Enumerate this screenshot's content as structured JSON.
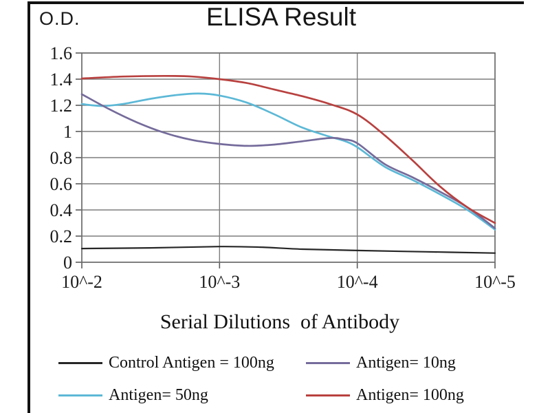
{
  "chart_data": {
    "type": "line",
    "title": "ELISA Result",
    "ylabel": "O.D.",
    "xlabel": "Serial Dilutions  of Antibody",
    "grid": true,
    "legend_position": "bottom",
    "x_axis": {
      "scale": "log-dilution",
      "min_exp": -2,
      "max_exp": -5,
      "ticks": [
        {
          "label": "10^-2",
          "exp": -2
        },
        {
          "label": "10^-3",
          "exp": -3
        },
        {
          "label": "10^-4",
          "exp": -4
        },
        {
          "label": "10^-5",
          "exp": -5
        }
      ]
    },
    "y_axis": {
      "min": 0,
      "max": 1.6,
      "ticks": [
        {
          "label": "0",
          "value": 0
        },
        {
          "label": "0.2",
          "value": 0.2
        },
        {
          "label": "0.4",
          "value": 0.4
        },
        {
          "label": "0.6",
          "value": 0.6
        },
        {
          "label": "0.8",
          "value": 0.8
        },
        {
          "label": "1",
          "value": 1.0
        },
        {
          "label": "1.2",
          "value": 1.2
        },
        {
          "label": "1.4",
          "value": 1.4
        },
        {
          "label": "1.6",
          "value": 1.6
        }
      ]
    },
    "series": [
      {
        "name": "Control Antigen = 100ng",
        "color": "#262626",
        "points": [
          [
            -2,
            0.105
          ],
          [
            -2.5,
            0.11
          ],
          [
            -3,
            0.12
          ],
          [
            -3.3,
            0.115
          ],
          [
            -3.6,
            0.1
          ],
          [
            -4,
            0.09
          ],
          [
            -4.5,
            0.08
          ],
          [
            -5,
            0.07
          ]
        ]
      },
      {
        "name": "Antigen= 10ng",
        "color": "#756b9b",
        "points": [
          [
            -2,
            1.285
          ],
          [
            -2.2,
            1.17
          ],
          [
            -2.4,
            1.07
          ],
          [
            -2.6,
            0.99
          ],
          [
            -2.8,
            0.935
          ],
          [
            -3,
            0.905
          ],
          [
            -3.2,
            0.89
          ],
          [
            -3.4,
            0.9
          ],
          [
            -3.6,
            0.925
          ],
          [
            -3.8,
            0.95
          ],
          [
            -3.9,
            0.94
          ],
          [
            -4,
            0.91
          ],
          [
            -4.2,
            0.75
          ],
          [
            -4.4,
            0.65
          ],
          [
            -4.6,
            0.54
          ],
          [
            -4.8,
            0.42
          ],
          [
            -5,
            0.26
          ]
        ]
      },
      {
        "name": "Antigen= 50ng",
        "color": "#5cb8d6",
        "points": [
          [
            -2,
            1.21
          ],
          [
            -2.15,
            1.195
          ],
          [
            -2.3,
            1.21
          ],
          [
            -2.5,
            1.25
          ],
          [
            -2.7,
            1.28
          ],
          [
            -2.85,
            1.29
          ],
          [
            -3,
            1.275
          ],
          [
            -3.2,
            1.22
          ],
          [
            -3.4,
            1.13
          ],
          [
            -3.6,
            1.03
          ],
          [
            -3.8,
            0.96
          ],
          [
            -3.9,
            0.93
          ],
          [
            -4,
            0.88
          ],
          [
            -4.2,
            0.73
          ],
          [
            -4.4,
            0.63
          ],
          [
            -4.6,
            0.52
          ],
          [
            -4.8,
            0.4
          ],
          [
            -5,
            0.25
          ]
        ]
      },
      {
        "name": "Antigen= 100ng",
        "color": "#b8413f",
        "points": [
          [
            -2,
            1.405
          ],
          [
            -2.3,
            1.42
          ],
          [
            -2.6,
            1.425
          ],
          [
            -2.8,
            1.42
          ],
          [
            -3,
            1.4
          ],
          [
            -3.2,
            1.37
          ],
          [
            -3.4,
            1.32
          ],
          [
            -3.6,
            1.27
          ],
          [
            -3.8,
            1.21
          ],
          [
            -4,
            1.13
          ],
          [
            -4.2,
            0.97
          ],
          [
            -4.4,
            0.78
          ],
          [
            -4.6,
            0.58
          ],
          [
            -4.8,
            0.42
          ],
          [
            -5,
            0.3
          ]
        ]
      }
    ]
  },
  "legend": {
    "columns": 2,
    "items": [
      {
        "label": "Control Antigen = 100ng",
        "series": 0
      },
      {
        "label": "Antigen= 10ng",
        "series": 1
      },
      {
        "label": "Antigen= 50ng",
        "series": 2
      },
      {
        "label": "Antigen= 100ng",
        "series": 3
      }
    ]
  }
}
